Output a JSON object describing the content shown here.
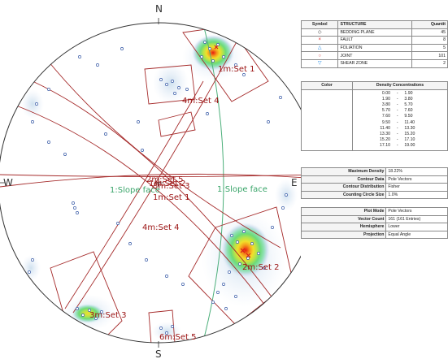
{
  "compass": {
    "north": "N",
    "south": "S",
    "east": "E",
    "west": "W"
  },
  "set_labels": {
    "set1_1m": "1m:Set 1",
    "set4_1m": "4m:Set 4",
    "set5_2m": "2m:Set 5",
    "set2_2m": "2m:Set 2",
    "set3_3m": "3m:Set 3",
    "set5_6m": "6m:Set 5",
    "set4_4m": "4m:Set 4",
    "set2_1m": "1m:Set 2",
    "set1_center": "1m:Set 1",
    "set3_center": "3m:Set 3",
    "set5_center": "2m:Set 5",
    "slope_face_left": "1:Slope face",
    "slope_face_right": "1:Slope face"
  },
  "legend": {
    "header_symbol": "Symbol",
    "header_structure": "STRUCTURE",
    "header_quantity": "Quantit",
    "rows": [
      {
        "symbol": "◇",
        "color": "#333333",
        "name": "BEDDING PLANE",
        "qty": "45"
      },
      {
        "symbol": "×",
        "color": "#d81b1b",
        "name": "FAULT",
        "qty": "8"
      },
      {
        "symbol": "△",
        "color": "#1e88e5",
        "name": "FOLIATION",
        "qty": "5"
      },
      {
        "symbol": "○",
        "color": "#e04545",
        "name": "JOINT",
        "qty": "101"
      },
      {
        "symbol": "▽",
        "color": "#1e88e5",
        "name": "SHEAR ZONE",
        "qty": "2"
      }
    ]
  },
  "density": {
    "header_color": "Color",
    "header_conc": "Density Concentrations",
    "dash": "-",
    "rows": [
      {
        "color": "#ffffff",
        "from": "0.00",
        "to": "1.90"
      },
      {
        "color": "#e6eef8",
        "from": "1.90",
        "to": "3.80"
      },
      {
        "color": "#cfe1ef",
        "from": "3.80",
        "to": "5.70"
      },
      {
        "color": "#b6e3dc",
        "from": "5.70",
        "to": "7.60"
      },
      {
        "color": "#8fe0b4",
        "from": "7.60",
        "to": "9.50"
      },
      {
        "color": "#6cdb78",
        "from": "9.50",
        "to": "11.40"
      },
      {
        "color": "#b6e34a",
        "from": "11.40",
        "to": "13.30"
      },
      {
        "color": "#f2df2a",
        "from": "13.30",
        "to": "15.20"
      },
      {
        "color": "#f59a1c",
        "from": "15.20",
        "to": "17.10"
      },
      {
        "color": "#e81a10",
        "from": "17.10",
        "to": "19.00"
      }
    ]
  },
  "info_a": [
    {
      "label": "Maximum Density",
      "value": "18.22%"
    },
    {
      "label": "Contour Data",
      "value": "Pole Vectors"
    },
    {
      "label": "Contour Distribution",
      "value": "Fisher"
    },
    {
      "label": "Counting Circle Size",
      "value": "1.0%"
    }
  ],
  "info_b": [
    {
      "label": "Plot Mode",
      "value": "Pole Vectors"
    },
    {
      "label": "Vector Count",
      "value": "161 (161 Entries)"
    },
    {
      "label": "Hemisphere",
      "value": "Lower"
    },
    {
      "label": "Projection",
      "value": "Equal Angle"
    }
  ],
  "colors": {
    "great_circle": "#a52a2a",
    "slope_face": "#4caf7a",
    "label_red": "#9a1010",
    "label_green": "#3aa56a",
    "pole": "#3b5da8",
    "net": "#333333"
  }
}
